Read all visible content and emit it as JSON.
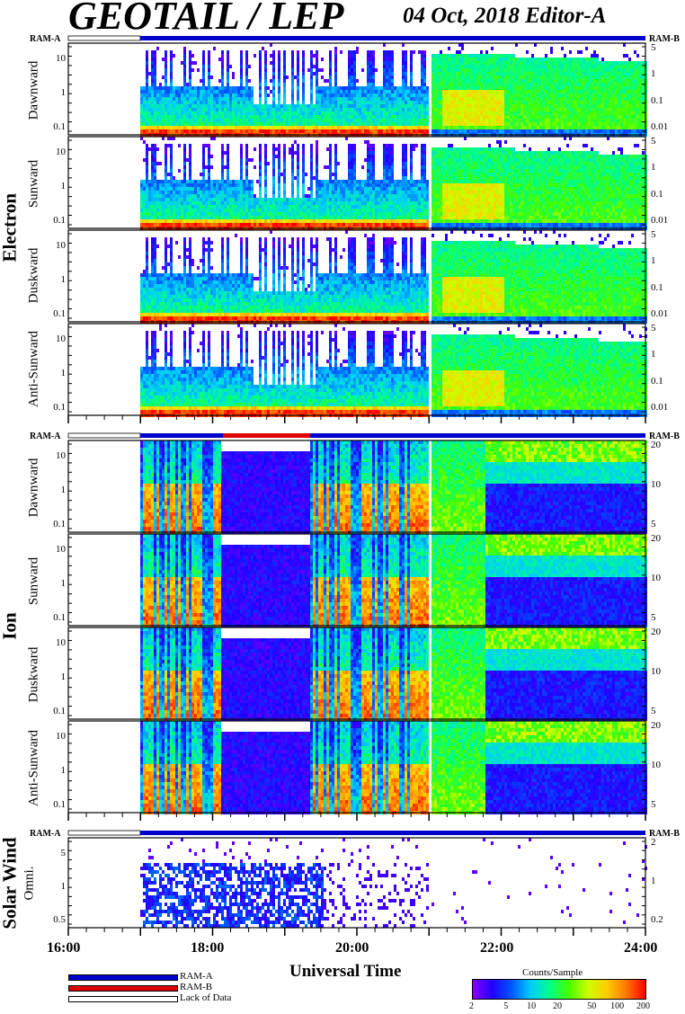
{
  "header": {
    "title": "GEOTAIL / LEP",
    "date_editor": "04 Oct, 2018   Editor-A"
  },
  "ram_labels": {
    "left": "RAM-A",
    "right": "RAM-B"
  },
  "groups": {
    "electron": "Electron",
    "ion": "Ion",
    "solar_wind": "Solar Wind"
  },
  "panels": {
    "e_dawn": {
      "label": "Dawnward",
      "left_ticks": [
        "10",
        "1",
        "0.1"
      ],
      "right_ticks": [
        "5",
        "1",
        "0.1",
        "0.01"
      ]
    },
    "e_sun": {
      "label": "Sunward",
      "left_ticks": [
        "10",
        "1",
        "0.1"
      ],
      "right_ticks": [
        "5",
        "1",
        "0.1",
        "0.01"
      ]
    },
    "e_dusk": {
      "label": "Duskward",
      "left_ticks": [
        "10",
        "1",
        "0.1"
      ],
      "right_ticks": [
        "5",
        "1",
        "0.1",
        "0.01"
      ]
    },
    "e_anti": {
      "label": "Anti-Sunward",
      "left_ticks": [
        "10",
        "1",
        "0.1"
      ],
      "right_ticks": [
        "5",
        "1",
        "0.1",
        "0.01"
      ]
    },
    "i_dawn": {
      "label": "Dawnward",
      "left_ticks": [
        "10",
        "1",
        "0.1"
      ],
      "right_ticks": [
        "20",
        "10",
        "5"
      ]
    },
    "i_sun": {
      "label": "Sunward",
      "left_ticks": [
        "10",
        "1",
        "0.1"
      ],
      "right_ticks": [
        "20",
        "10",
        "5"
      ]
    },
    "i_dusk": {
      "label": "Duskward",
      "left_ticks": [
        "10",
        "1",
        "0.1"
      ],
      "right_ticks": [
        "20",
        "10",
        "5"
      ]
    },
    "i_anti": {
      "label": "Anti-Sunward",
      "left_ticks": [
        "10",
        "1",
        "0.1"
      ],
      "right_ticks": [
        "20",
        "10",
        "5"
      ]
    },
    "sw_omni": {
      "label": "Omni.",
      "left_ticks": [
        "5",
        "1",
        "0.5"
      ],
      "right_ticks": [
        "2",
        "1",
        "0.2"
      ]
    }
  },
  "x_axis": {
    "ticks": [
      "16:00",
      "18:00",
      "20:00",
      "22:00",
      "24:00"
    ],
    "label": "Universal Time"
  },
  "legend": {
    "ram_a": "RAM-A",
    "ram_b": "RAM-B",
    "lack": "Lack of Data"
  },
  "colorbar": {
    "title": "Counts/Sample",
    "ticks": [
      "2",
      "5",
      "10",
      "20",
      "50",
      "100",
      "200"
    ]
  },
  "colors": {
    "ram_a": "#0000cc",
    "ram_b": "#e00000"
  },
  "chart_data": {
    "type": "heatmap",
    "x_range_ut_hours": [
      16,
      24
    ],
    "data_start_ut": "17:00",
    "electron_panels": [
      "Dawnward",
      "Sunward",
      "Duskward",
      "Anti-Sunward"
    ],
    "ion_panels": [
      "Dawnward",
      "Sunward",
      "Duskward",
      "Anti-Sunward"
    ],
    "solar_wind_panels": [
      "Omni."
    ],
    "y_scale": "log",
    "colorbar_range": [
      2,
      200
    ],
    "colorbar_scale": "log",
    "ram_mode_intervals": [
      {
        "mode": "Lack of Data",
        "start": "16:00",
        "end": "17:00"
      },
      {
        "mode": "RAM-A",
        "start": "17:00",
        "end": "24:00"
      }
    ]
  }
}
